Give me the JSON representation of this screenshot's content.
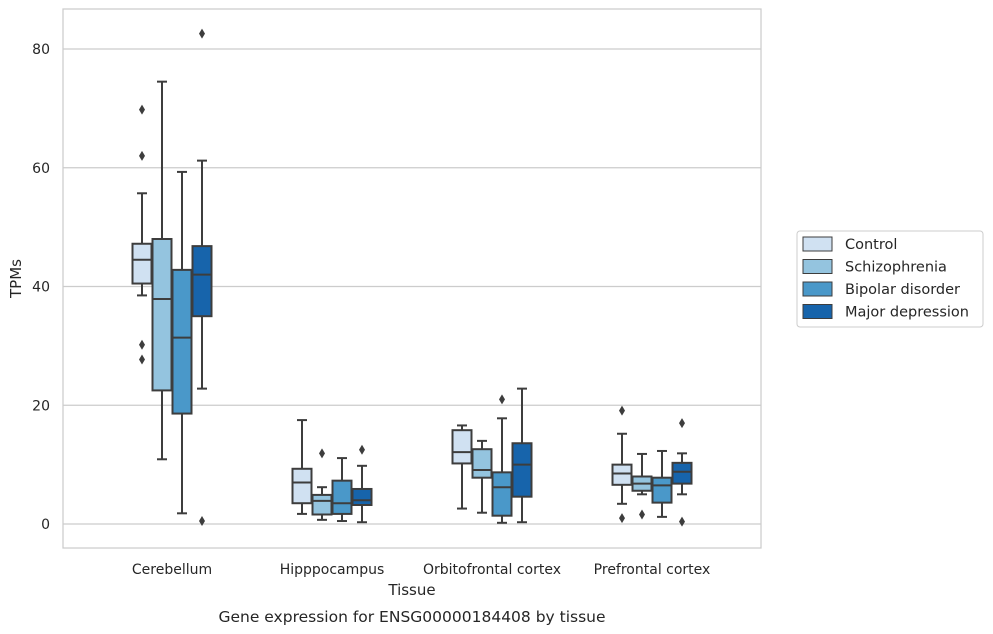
{
  "chart_data": {
    "type": "box",
    "title": "",
    "caption": "Gene expression for ENSG00000184408 by tissue",
    "xlabel": "Tissue",
    "ylabel": "TPMs",
    "ylim": [
      -4,
      87
    ],
    "yticks": [
      0,
      20,
      40,
      60,
      80
    ],
    "grid": "horizontal",
    "legend_placement": "outside-right",
    "categories": [
      "Cerebellum",
      "Hipppocampus",
      "Orbitofrontal cortex",
      "Prefrontal cortex"
    ],
    "series": [
      {
        "name": "Control",
        "color": "#d0e1f2",
        "boxes": [
          {
            "whislo": 38.5,
            "q1": 40.5,
            "med": 44.5,
            "q3": 47.2,
            "whishi": 55.7,
            "fliers": [
              69.8,
              62.0,
              30.2,
              27.7
            ]
          },
          {
            "whislo": 1.7,
            "q1": 3.5,
            "med": 7.0,
            "q3": 9.3,
            "whishi": 17.5,
            "fliers": []
          },
          {
            "whislo": 2.6,
            "q1": 10.2,
            "med": 12.1,
            "q3": 15.8,
            "whishi": 16.6,
            "fliers": []
          },
          {
            "whislo": 3.4,
            "q1": 6.6,
            "med": 8.5,
            "q3": 10.0,
            "whishi": 15.2,
            "fliers": [
              19.1,
              1.0
            ]
          }
        ]
      },
      {
        "name": "Schizophrenia",
        "color": "#94c4df",
        "boxes": [
          {
            "whislo": 10.9,
            "q1": 22.5,
            "med": 37.9,
            "q3": 48.0,
            "whishi": 74.5,
            "fliers": []
          },
          {
            "whislo": 0.7,
            "q1": 1.6,
            "med": 3.9,
            "q3": 4.9,
            "whishi": 6.2,
            "fliers": [
              11.9
            ]
          },
          {
            "whislo": 1.9,
            "q1": 7.8,
            "med": 9.1,
            "q3": 12.6,
            "whishi": 14.0,
            "fliers": []
          },
          {
            "whislo": 5.0,
            "q1": 5.6,
            "med": 6.8,
            "q3": 8.0,
            "whishi": 11.8,
            "fliers": [
              1.6
            ]
          }
        ]
      },
      {
        "name": "Bipolar disorder",
        "color": "#4a98c9",
        "boxes": [
          {
            "whislo": 1.8,
            "q1": 18.6,
            "med": 31.4,
            "q3": 42.8,
            "whishi": 59.3,
            "fliers": []
          },
          {
            "whislo": 0.5,
            "q1": 1.7,
            "med": 3.5,
            "q3": 7.3,
            "whishi": 11.1,
            "fliers": []
          },
          {
            "whislo": 0.2,
            "q1": 1.4,
            "med": 6.2,
            "q3": 8.7,
            "whishi": 17.8,
            "fliers": [
              21.0
            ]
          },
          {
            "whislo": 1.2,
            "q1": 3.6,
            "med": 6.5,
            "q3": 7.8,
            "whishi": 12.3,
            "fliers": []
          }
        ]
      },
      {
        "name": "Major depression",
        "color": "#1764ab",
        "boxes": [
          {
            "whislo": 22.8,
            "q1": 35.0,
            "med": 42.0,
            "q3": 46.8,
            "whishi": 61.2,
            "fliers": [
              82.6,
              0.5
            ]
          },
          {
            "whislo": 0.3,
            "q1": 3.2,
            "med": 4.0,
            "q3": 5.9,
            "whishi": 9.8,
            "fliers": [
              12.5
            ]
          },
          {
            "whislo": 0.3,
            "q1": 4.6,
            "med": 10.0,
            "q3": 13.6,
            "whishi": 22.8,
            "fliers": []
          },
          {
            "whislo": 5.0,
            "q1": 6.8,
            "med": 8.8,
            "q3": 10.3,
            "whishi": 11.9,
            "fliers": [
              17.0,
              0.4
            ]
          }
        ]
      }
    ]
  }
}
